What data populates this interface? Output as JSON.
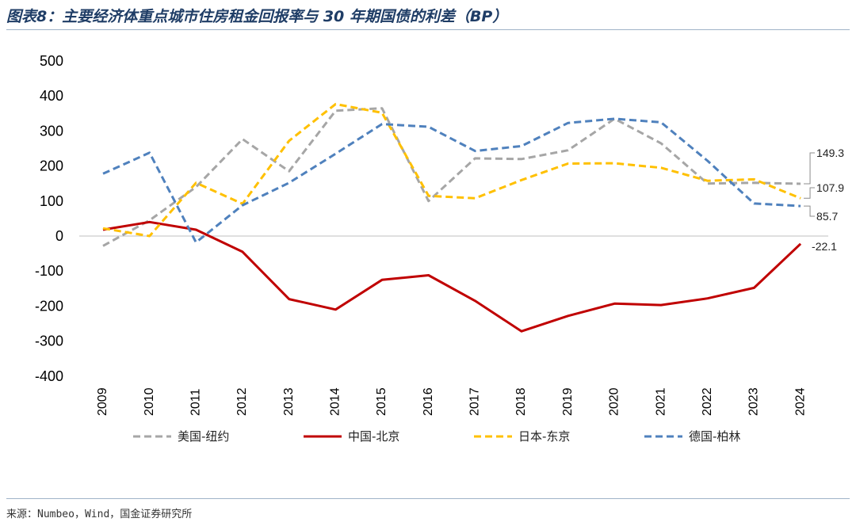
{
  "title": "图表8：主要经济体重点城市住房租金回报率与 30 年期国债的利差（BP）",
  "source": "来源：Numbeo，Wind，国金证券研究所",
  "chart_data": {
    "type": "line",
    "title": "图表8：主要经济体重点城市住房租金回报率与 30 年期国债的利差（BP）",
    "categories": [
      "2009",
      "2010",
      "2011",
      "2012",
      "2013",
      "2014",
      "2015",
      "2016",
      "2017",
      "2018",
      "2019",
      "2020",
      "2021",
      "2022",
      "2023",
      "2024"
    ],
    "ylim": [
      -400,
      500
    ],
    "yticks": [
      500,
      400,
      300,
      200,
      100,
      0,
      -100,
      -200,
      -300,
      -400
    ],
    "grid": false,
    "legend": "bottom",
    "series": [
      {
        "name": "美国-纽约",
        "color": "#a6a6a6",
        "dash": true,
        "values": [
          -28,
          45,
          140,
          277,
          185,
          358,
          365,
          100,
          222,
          220,
          245,
          335,
          265,
          150,
          152,
          149.3
        ]
      },
      {
        "name": "中国-北京",
        "color": "#c00000",
        "dash": false,
        "values": [
          18,
          40,
          18,
          -45,
          -180,
          -210,
          -125,
          -112,
          -185,
          -272,
          -228,
          -193,
          -197,
          -178,
          -148,
          -22.1
        ]
      },
      {
        "name": "日本-东京",
        "color": "#ffc000",
        "dash": true,
        "values": [
          22,
          0,
          152,
          92,
          272,
          377,
          352,
          115,
          108,
          160,
          207,
          208,
          195,
          158,
          162,
          107.9
        ]
      },
      {
        "name": "德国-柏林",
        "color": "#4f81bd",
        "dash": true,
        "values": [
          178,
          238,
          -18,
          88,
          152,
          235,
          320,
          312,
          243,
          257,
          323,
          335,
          325,
          215,
          93,
          85.7
        ]
      }
    ],
    "annotations": [
      "149.3",
      "107.9",
      "85.7",
      "-22.1"
    ]
  }
}
